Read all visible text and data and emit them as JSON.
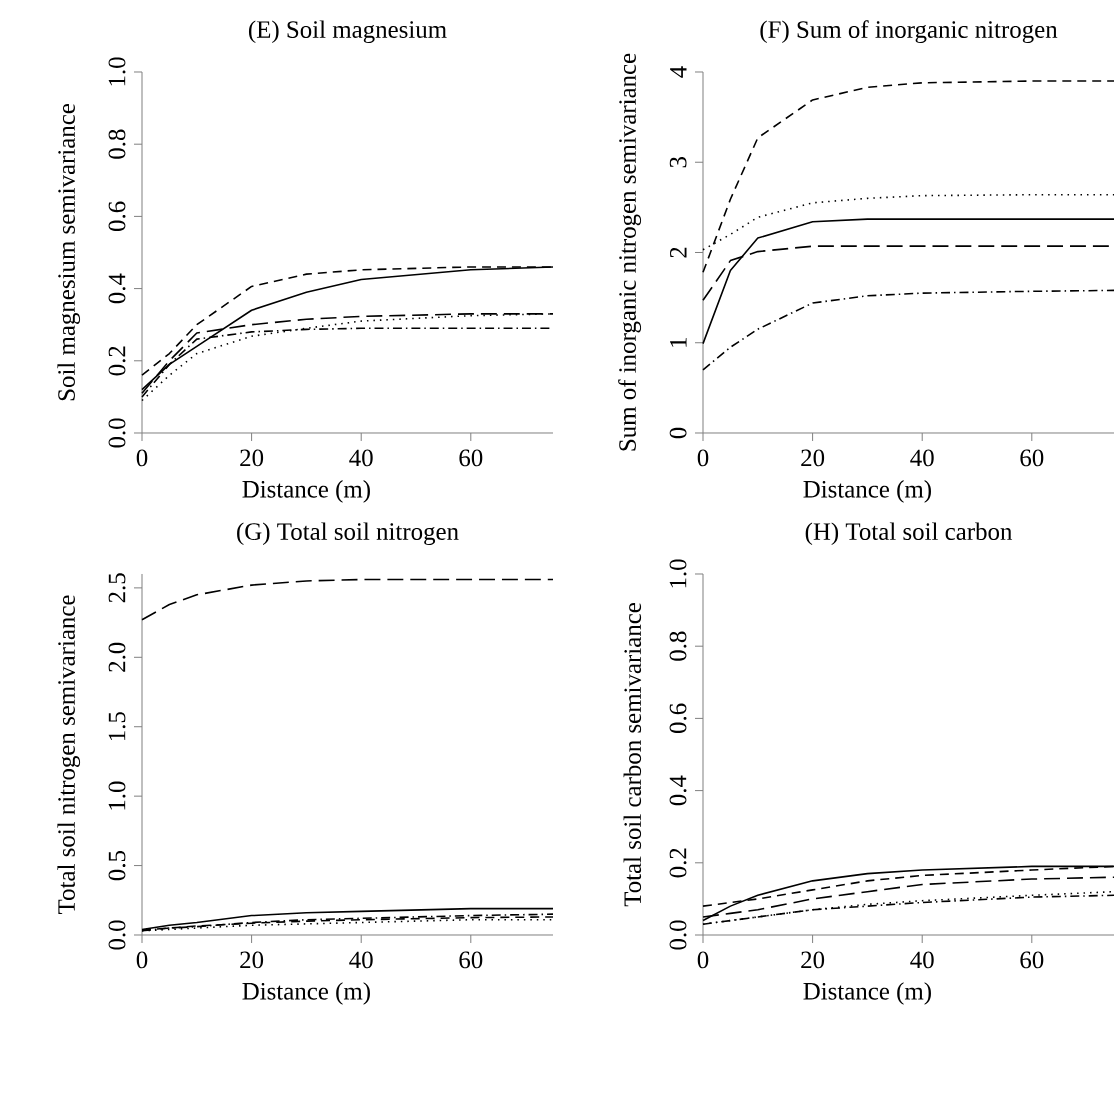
{
  "chart_data": [
    {
      "type": "line",
      "title": "(E) Soil magnesium",
      "xlabel": "Distance (m)",
      "ylabel": "Soil magnesium semivariance",
      "x": [
        0,
        5,
        10,
        20,
        30,
        40,
        60,
        75
      ],
      "xlim": [
        0,
        75
      ],
      "xticks": [
        0,
        20,
        40,
        60
      ],
      "ylim": [
        0,
        1
      ],
      "yticks": [
        {
          "value": 0,
          "label": "0.0"
        },
        {
          "value": 0.2,
          "label": "0.2"
        },
        {
          "value": 0.4,
          "label": "0.4"
        },
        {
          "value": 0.6,
          "label": "0.6"
        },
        {
          "value": 0.8,
          "label": "0.8"
        },
        {
          "value": 1,
          "label": "1.0"
        }
      ],
      "series": [
        {
          "color": "#000000",
          "line_style": "solid",
          "values": [
            0.12,
            0.19,
            0.24,
            0.34,
            0.39,
            0.425,
            0.452,
            0.46
          ]
        },
        {
          "color": "#000000",
          "line_style": "dashed",
          "values": [
            0.16,
            0.22,
            0.3,
            0.406,
            0.44,
            0.452,
            0.46,
            0.46
          ]
        },
        {
          "color": "#000000",
          "line_style": "longdash",
          "values": [
            0.11,
            0.2,
            0.277,
            0.3,
            0.315,
            0.323,
            0.33,
            0.33
          ]
        },
        {
          "color": "#000000",
          "line_style": "dotted",
          "values": [
            0.09,
            0.16,
            0.22,
            0.268,
            0.29,
            0.31,
            0.325,
            0.33
          ]
        },
        {
          "color": "#000000",
          "line_style": "dashdot",
          "values": [
            0.1,
            0.19,
            0.26,
            0.28,
            0.287,
            0.29,
            0.29,
            0.29
          ]
        }
      ]
    },
    {
      "type": "line",
      "title": "(F) Sum of inorganic nitrogen",
      "xlabel": "Distance (m)",
      "ylabel": "Sum of inorganic nitrogen semivariance",
      "x": [
        0,
        5,
        10,
        20,
        30,
        40,
        60,
        75
      ],
      "xlim": [
        0,
        75
      ],
      "xticks": [
        0,
        20,
        40,
        60
      ],
      "ylim": [
        0,
        4
      ],
      "yticks": [
        0,
        1,
        2,
        3,
        4
      ],
      "series": [
        {
          "color": "#000000",
          "line_style": "dashed",
          "values": [
            1.78,
            2.59,
            3.27,
            3.69,
            3.83,
            3.88,
            3.9,
            3.9
          ]
        },
        {
          "color": "#000000",
          "line_style": "dotted",
          "values": [
            2.03,
            2.2,
            2.39,
            2.55,
            2.6,
            2.63,
            2.64,
            2.64
          ]
        },
        {
          "color": "#000000",
          "line_style": "solid",
          "values": [
            0.99,
            1.8,
            2.16,
            2.34,
            2.37,
            2.37,
            2.37,
            2.37
          ]
        },
        {
          "color": "#000000",
          "line_style": "longdash",
          "values": [
            1.47,
            1.91,
            2.01,
            2.07,
            2.07,
            2.07,
            2.07,
            2.07
          ]
        },
        {
          "color": "#000000",
          "line_style": "dashdot",
          "values": [
            0.7,
            0.95,
            1.15,
            1.44,
            1.52,
            1.55,
            1.57,
            1.58
          ]
        }
      ]
    },
    {
      "type": "line",
      "title": "(G) Total soil nitrogen",
      "xlabel": "Distance (m)",
      "ylabel": "Total soil nitrogen semivariance",
      "x": [
        0,
        5,
        10,
        20,
        30,
        40,
        60,
        75
      ],
      "xlim": [
        0,
        75
      ],
      "xticks": [
        0,
        20,
        40,
        60
      ],
      "ylim": [
        0,
        2.6
      ],
      "yticks": [
        {
          "value": 0,
          "label": "0.0"
        },
        {
          "value": 0.5,
          "label": "0.5"
        },
        {
          "value": 1,
          "label": "1.0"
        },
        {
          "value": 1.5,
          "label": "1.5"
        },
        {
          "value": 2,
          "label": "2.0"
        },
        {
          "value": 2.5,
          "label": "2.5"
        }
      ],
      "series": [
        {
          "color": "#000000",
          "line_style": "longdash",
          "values": [
            2.27,
            2.38,
            2.45,
            2.52,
            2.55,
            2.56,
            2.56,
            2.56
          ]
        },
        {
          "color": "#000000",
          "line_style": "solid",
          "values": [
            0.04,
            0.07,
            0.09,
            0.14,
            0.16,
            0.17,
            0.19,
            0.19
          ]
        },
        {
          "color": "#000000",
          "line_style": "dashdot",
          "values": [
            0.03,
            0.05,
            0.06,
            0.09,
            0.11,
            0.12,
            0.14,
            0.15
          ]
        },
        {
          "color": "#000000",
          "line_style": "dotted",
          "values": [
            0.03,
            0.04,
            0.05,
            0.07,
            0.08,
            0.09,
            0.11,
            0.11
          ]
        },
        {
          "color": "#000000",
          "line_style": "dashed",
          "values": [
            0.035,
            0.05,
            0.065,
            0.085,
            0.1,
            0.11,
            0.125,
            0.13
          ]
        }
      ]
    },
    {
      "type": "line",
      "title": "(H) Total soil carbon",
      "xlabel": "Distance (m)",
      "ylabel": "Total soil carbon semivariance",
      "x": [
        0,
        5,
        10,
        20,
        30,
        40,
        60,
        75
      ],
      "xlim": [
        0,
        75
      ],
      "xticks": [
        0,
        20,
        40,
        60
      ],
      "ylim": [
        0,
        1
      ],
      "yticks": [
        {
          "value": 0,
          "label": "0.0"
        },
        {
          "value": 0.2,
          "label": "0.2"
        },
        {
          "value": 0.4,
          "label": "0.4"
        },
        {
          "value": 0.6,
          "label": "0.6"
        },
        {
          "value": 0.8,
          "label": "0.8"
        },
        {
          "value": 1,
          "label": "1.0"
        }
      ],
      "series": [
        {
          "color": "#000000",
          "line_style": "solid",
          "values": [
            0.04,
            0.08,
            0.11,
            0.15,
            0.17,
            0.18,
            0.19,
            0.19
          ]
        },
        {
          "color": "#000000",
          "line_style": "dashed",
          "values": [
            0.08,
            0.09,
            0.1,
            0.125,
            0.15,
            0.165,
            0.18,
            0.19
          ]
        },
        {
          "color": "#000000",
          "line_style": "longdash",
          "values": [
            0.05,
            0.06,
            0.07,
            0.1,
            0.12,
            0.14,
            0.155,
            0.16
          ]
        },
        {
          "color": "#000000",
          "line_style": "dotted",
          "values": [
            0.03,
            0.04,
            0.05,
            0.07,
            0.085,
            0.095,
            0.11,
            0.12
          ]
        },
        {
          "color": "#000000",
          "line_style": "dashdot",
          "values": [
            0.03,
            0.04,
            0.05,
            0.07,
            0.08,
            0.09,
            0.105,
            0.11
          ]
        }
      ]
    }
  ]
}
